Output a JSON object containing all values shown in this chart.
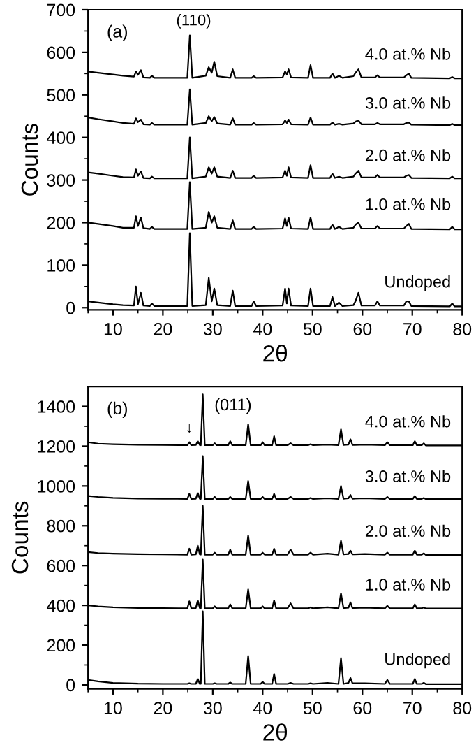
{
  "chart_data": [
    {
      "type": "line",
      "xlabel": "2θ",
      "ylabel": "Counts",
      "xlim": [
        5,
        80
      ],
      "ylim": [
        -5,
        700
      ],
      "xticks": [
        {
          "value": 5,
          "label": null
        },
        10,
        {
          "value": 15,
          "label": null
        },
        20,
        {
          "value": 25,
          "label": null
        },
        30,
        {
          "value": 35,
          "label": null
        },
        40,
        {
          "value": 45,
          "label": null
        },
        50,
        {
          "value": 55,
          "label": null
        },
        60,
        {
          "value": 65,
          "label": null
        },
        70,
        {
          "value": 75,
          "label": null
        },
        80
      ],
      "yticks": [
        0,
        {
          "value": 50,
          "label": null
        },
        100,
        {
          "value": 150,
          "label": null
        },
        200,
        {
          "value": 250,
          "label": null
        },
        300,
        {
          "value": 350,
          "label": null
        },
        400,
        {
          "value": 450,
          "label": null
        },
        500,
        {
          "value": 550,
          "label": null
        },
        600,
        {
          "value": 650,
          "label": null
        },
        700
      ],
      "annotations": [
        "(a)",
        {
          "text": "(110)",
          "x": 25.4,
          "y": 640
        }
      ],
      "x": [
        5,
        7,
        10,
        12,
        14.2,
        14.6,
        15.0,
        15.6,
        16.1,
        17.4,
        17.8,
        18.3,
        24.9,
        25.4,
        25.9,
        28.6,
        29.2,
        29.8,
        30.3,
        30.9,
        33.5,
        34.0,
        34.5,
        37.8,
        38.2,
        38.7,
        44.0,
        44.5,
        44.85,
        45.2,
        45.7,
        49.1,
        49.6,
        50.1,
        53.5,
        54.0,
        54.5,
        55.3,
        56.0,
        58.2,
        58.6,
        59.2,
        59.8,
        62.5,
        63.0,
        63.5,
        68.3,
        68.8,
        69.3,
        69.8,
        77.5,
        78.0,
        78.5,
        80
      ],
      "series": [
        {
          "name": "Undoped",
          "color": "#000000",
          "values": [
            15,
            12,
            8,
            6,
            5,
            50,
            8,
            35,
            5,
            4,
            10,
            4,
            4,
            175,
            4,
            6,
            70,
            15,
            45,
            6,
            4,
            40,
            4,
            4,
            15,
            4,
            5,
            45,
            10,
            45,
            5,
            4,
            45,
            4,
            4,
            25,
            4,
            12,
            4,
            6,
            15,
            35,
            5,
            5,
            15,
            5,
            5,
            15,
            15,
            4,
            3,
            10,
            3,
            3
          ]
        },
        {
          "name": "1.0 at.% Nb",
          "color": "#000000",
          "values": [
            200,
            197,
            192,
            188,
            188,
            215,
            192,
            212,
            187,
            185,
            190,
            185,
            185,
            295,
            185,
            188,
            225,
            200,
            215,
            188,
            185,
            205,
            185,
            185,
            190,
            185,
            186,
            210,
            192,
            212,
            186,
            185,
            212,
            185,
            185,
            195,
            185,
            190,
            185,
            188,
            195,
            200,
            186,
            186,
            192,
            186,
            186,
            192,
            197,
            185,
            184,
            190,
            184,
            184
          ]
        },
        {
          "name": "2.0 at.% Nb",
          "color": "#000000",
          "values": [
            318,
            315,
            310,
            307,
            306,
            325,
            310,
            320,
            305,
            304,
            308,
            304,
            304,
            400,
            304,
            308,
            330,
            315,
            330,
            308,
            305,
            322,
            305,
            305,
            310,
            305,
            306,
            322,
            310,
            330,
            306,
            305,
            335,
            305,
            305,
            315,
            305,
            308,
            305,
            308,
            315,
            322,
            306,
            306,
            312,
            306,
            306,
            310,
            312,
            305,
            304,
            308,
            304,
            304
          ]
        },
        {
          "name": "3.0 at.% Nb",
          "color": "#000000",
          "values": [
            447,
            443,
            438,
            434,
            432,
            445,
            436,
            442,
            431,
            430,
            434,
            430,
            430,
            513,
            430,
            434,
            450,
            438,
            448,
            433,
            430,
            445,
            430,
            430,
            434,
            430,
            431,
            440,
            434,
            442,
            431,
            430,
            447,
            430,
            430,
            435,
            430,
            432,
            430,
            433,
            437,
            440,
            431,
            431,
            434,
            431,
            431,
            434,
            435,
            430,
            429,
            432,
            429,
            429
          ]
        },
        {
          "name": "4.0 at.% Nb",
          "color": "#000000",
          "values": [
            555,
            552,
            548,
            545,
            543,
            555,
            547,
            558,
            541,
            540,
            545,
            540,
            540,
            640,
            540,
            545,
            565,
            552,
            578,
            544,
            540,
            560,
            540,
            540,
            544,
            540,
            541,
            555,
            548,
            560,
            541,
            540,
            570,
            540,
            540,
            550,
            540,
            545,
            540,
            544,
            552,
            560,
            541,
            541,
            546,
            541,
            541,
            546,
            550,
            540,
            539,
            542,
            539,
            539
          ]
        }
      ]
    },
    {
      "type": "line",
      "xlabel": "2θ",
      "ylabel": "Counts",
      "xlim": [
        5,
        80
      ],
      "ylim": [
        -20,
        1500
      ],
      "xticks": [
        {
          "value": 5,
          "label": null
        },
        10,
        {
          "value": 15,
          "label": null
        },
        20,
        {
          "value": 25,
          "label": null
        },
        30,
        {
          "value": 35,
          "label": null
        },
        40,
        {
          "value": 45,
          "label": null
        },
        50,
        {
          "value": 55,
          "label": null
        },
        60,
        {
          "value": 65,
          "label": null
        },
        70,
        {
          "value": 75,
          "label": null
        },
        80
      ],
      "yticks": [
        0,
        {
          "value": 100,
          "label": null
        },
        200,
        {
          "value": 300,
          "label": null
        },
        400,
        {
          "value": 500,
          "label": null
        },
        600,
        {
          "value": 700,
          "label": null
        },
        800,
        {
          "value": 900,
          "label": null
        },
        1000,
        {
          "value": 1100,
          "label": null
        },
        1200,
        {
          "value": 1300,
          "label": null
        },
        1400
      ],
      "annotations": [
        "(b)",
        {
          "text": "(011)",
          "x": 28.0,
          "y": 1460
        },
        {
          "text": "↓",
          "x": 25.3,
          "y": 1220
        }
      ],
      "x": [
        5,
        7,
        10,
        15,
        20,
        24.9,
        25.3,
        25.7,
        26.6,
        27.0,
        27.4,
        27.6,
        28.0,
        28.4,
        30.0,
        30.4,
        30.8,
        33.1,
        33.5,
        33.9,
        36.6,
        37.1,
        37.6,
        39.6,
        40.0,
        40.4,
        41.9,
        42.3,
        42.7,
        45.0,
        45.6,
        46.2,
        49.1,
        49.6,
        50.1,
        53.0,
        55.2,
        55.7,
        56.2,
        57.2,
        57.6,
        58.0,
        60.5,
        64.5,
        65.0,
        65.5,
        70.1,
        70.5,
        70.9,
        71.9,
        72.3,
        72.7,
        80
      ],
      "series": [
        {
          "name": "Undoped",
          "color": "#000000",
          "values": [
            25,
            18,
            10,
            6,
            5,
            5,
            8,
            5,
            5,
            30,
            5,
            5,
            370,
            5,
            5,
            8,
            5,
            5,
            12,
            5,
            5,
            145,
            5,
            5,
            15,
            5,
            5,
            55,
            5,
            5,
            10,
            5,
            5,
            8,
            5,
            10,
            5,
            135,
            5,
            10,
            35,
            8,
            8,
            5,
            25,
            5,
            5,
            30,
            5,
            5,
            10,
            4,
            4
          ]
        },
        {
          "name": "1.0 at.% Nb",
          "color": "#000000",
          "values": [
            400,
            395,
            390,
            387,
            386,
            385,
            420,
            385,
            386,
            425,
            386,
            385,
            630,
            385,
            385,
            395,
            385,
            385,
            405,
            385,
            385,
            480,
            385,
            385,
            395,
            385,
            385,
            425,
            385,
            385,
            410,
            385,
            385,
            390,
            385,
            390,
            385,
            460,
            386,
            388,
            415,
            386,
            388,
            385,
            398,
            385,
            385,
            405,
            385,
            385,
            390,
            384,
            384
          ]
        },
        {
          "name": "2.0 at.% Nb",
          "color": "#000000",
          "values": [
            668,
            663,
            660,
            657,
            656,
            655,
            685,
            655,
            656,
            700,
            656,
            655,
            900,
            655,
            655,
            665,
            655,
            655,
            680,
            655,
            655,
            750,
            655,
            655,
            665,
            655,
            655,
            685,
            655,
            655,
            680,
            655,
            655,
            665,
            655,
            660,
            655,
            725,
            656,
            658,
            675,
            656,
            658,
            655,
            665,
            655,
            655,
            675,
            655,
            655,
            662,
            654,
            654
          ]
        },
        {
          "name": "3.0 at.% Nb",
          "color": "#000000",
          "values": [
            950,
            945,
            940,
            937,
            936,
            935,
            960,
            935,
            936,
            965,
            936,
            935,
            1150,
            935,
            935,
            945,
            935,
            935,
            945,
            935,
            935,
            1025,
            935,
            935,
            945,
            935,
            935,
            960,
            935,
            935,
            945,
            935,
            935,
            940,
            935,
            938,
            935,
            1000,
            936,
            938,
            955,
            936,
            938,
            935,
            945,
            935,
            935,
            950,
            935,
            935,
            940,
            934,
            934
          ]
        },
        {
          "name": "4.0 at.% Nb",
          "color": "#000000",
          "values": [
            1220,
            1213,
            1210,
            1207,
            1206,
            1205,
            1220,
            1205,
            1206,
            1225,
            1206,
            1205,
            1460,
            1205,
            1205,
            1215,
            1205,
            1205,
            1225,
            1205,
            1205,
            1310,
            1205,
            1205,
            1220,
            1205,
            1205,
            1250,
            1205,
            1205,
            1215,
            1205,
            1205,
            1210,
            1205,
            1208,
            1205,
            1285,
            1206,
            1208,
            1235,
            1206,
            1208,
            1205,
            1220,
            1205,
            1205,
            1225,
            1205,
            1205,
            1215,
            1204,
            1204
          ]
        }
      ]
    }
  ]
}
